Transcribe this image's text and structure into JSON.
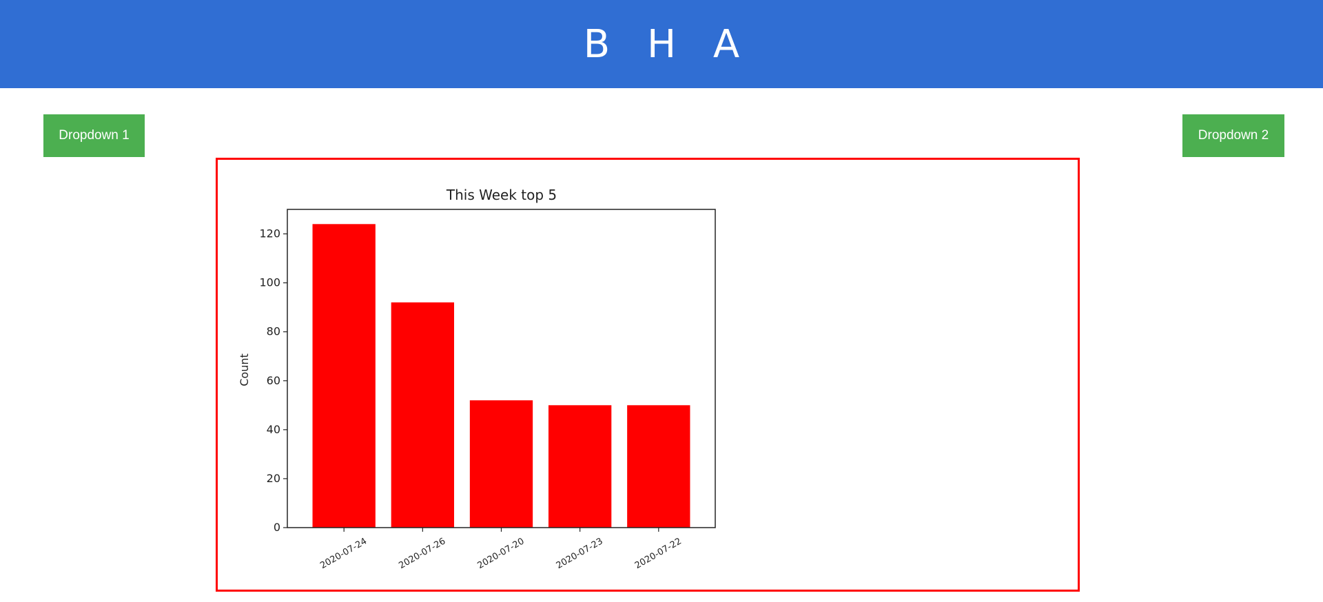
{
  "header": {
    "title": "B H A",
    "background": "#306ed3"
  },
  "buttons": {
    "dropdown1_label": "Dropdown 1",
    "dropdown2_label": "Dropdown 2",
    "color": "#4caf50"
  },
  "frame": {
    "border_color": "#ff0000"
  },
  "chart_data": {
    "type": "bar",
    "title": "This Week top 5",
    "xlabel": "",
    "ylabel": "Count",
    "categories": [
      "2020-07-24",
      "2020-07-26",
      "2020-07-20",
      "2020-07-23",
      "2020-07-22"
    ],
    "values": [
      124,
      92,
      52,
      50,
      50
    ],
    "ylim": [
      0,
      130
    ],
    "yticks": [
      0,
      20,
      40,
      60,
      80,
      100,
      120
    ],
    "bar_color": "#ff0000",
    "grid": false,
    "legend": "none"
  }
}
